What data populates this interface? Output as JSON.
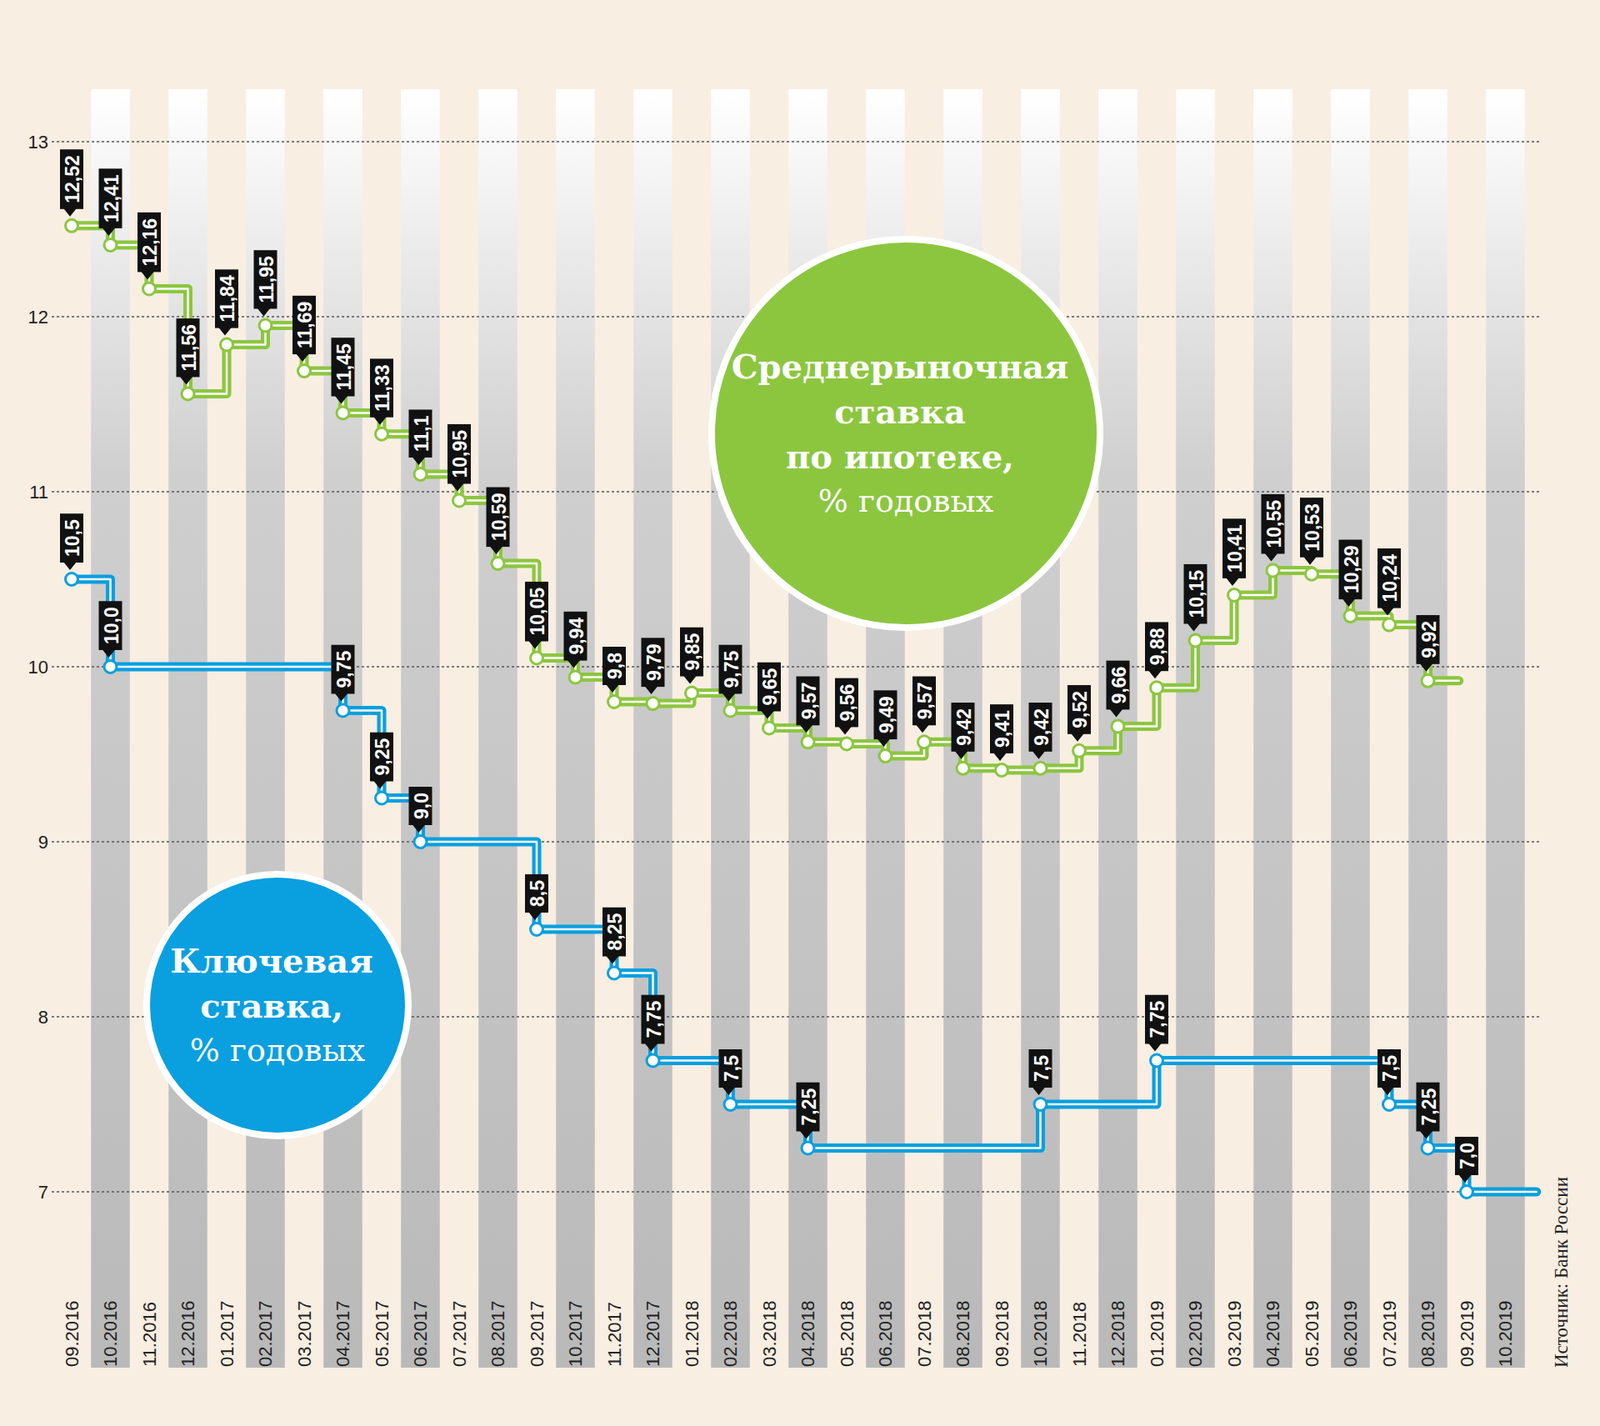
{
  "chart_data": {
    "type": "line",
    "source": "Источник: Банк России",
    "categories": [
      "09.2016",
      "10.2016",
      "11.2016",
      "12.2016",
      "01.2017",
      "02.2017",
      "03.2017",
      "04.2017",
      "05.2017",
      "06.2017",
      "07.2017",
      "08.2017",
      "09.2017",
      "10.2017",
      "11.2017",
      "12.2017",
      "01.2018",
      "02.2018",
      "03.2018",
      "04.2018",
      "05.2018",
      "06.2018",
      "07.2018",
      "08.2018",
      "09.2018",
      "10.2018",
      "11.2018",
      "12.2018",
      "01.2019",
      "02.2019",
      "03.2019",
      "04.2019",
      "05.2019",
      "06.2019",
      "07.2019",
      "08.2019",
      "09.2019",
      "10.2019"
    ],
    "ylim": [
      7,
      13
    ],
    "yticks": [
      7,
      8,
      9,
      10,
      11,
      12,
      13
    ],
    "grid": true,
    "data_labels": true,
    "line_style": "step",
    "marker": "circle",
    "series": [
      {
        "name": "Среднерыночная ставка по ипотеке, % годовых",
        "color": "#8cc63f",
        "values": [
          12.52,
          12.41,
          12.16,
          11.56,
          11.84,
          11.95,
          11.69,
          11.45,
          11.33,
          11.1,
          10.95,
          10.59,
          10.05,
          9.94,
          9.8,
          9.79,
          9.85,
          9.75,
          9.65,
          9.57,
          9.56,
          9.49,
          9.57,
          9.42,
          9.41,
          9.42,
          9.52,
          9.66,
          9.88,
          10.15,
          10.41,
          10.55,
          10.53,
          10.29,
          10.24,
          9.92,
          null,
          null
        ],
        "value_labels": [
          "12,52",
          "12,41",
          "12,16",
          "11,56",
          "11,84",
          "11,95",
          "11,69",
          "11,45",
          "11,33",
          "11,1",
          "10,95",
          "10,59",
          "10,05",
          "9,94",
          "9,8",
          "9,79",
          "9,85",
          "9,75",
          "9,65",
          "9,57",
          "9,56",
          "9,49",
          "9,57",
          "9,42",
          "9,41",
          "9,42",
          "9,52",
          "9,66",
          "9,88",
          "10,15",
          "10,41",
          "10,55",
          "10,53",
          "10,29",
          "10,24",
          "9,92",
          null,
          null
        ]
      },
      {
        "name": "Ключевая ставка, % годовых",
        "color": "#0a9fdf",
        "values": [
          10.5,
          10.0,
          10.0,
          10.0,
          10.0,
          10.0,
          10.0,
          9.75,
          9.25,
          9.0,
          9.0,
          9.0,
          8.5,
          8.5,
          8.25,
          7.75,
          7.75,
          7.5,
          7.5,
          7.25,
          7.25,
          7.25,
          7.25,
          7.25,
          7.25,
          7.5,
          7.5,
          7.5,
          7.75,
          7.75,
          7.75,
          7.75,
          7.75,
          7.75,
          7.5,
          7.25,
          7.0,
          7.0
        ],
        "value_labels": [
          "10,5",
          "10,0",
          null,
          null,
          null,
          null,
          null,
          "9,75",
          "9,25",
          "9,0",
          null,
          null,
          "8,5",
          null,
          "8,25",
          "7,75",
          null,
          "7,5",
          null,
          "7,25",
          null,
          null,
          null,
          null,
          null,
          "7,5",
          null,
          null,
          "7,75",
          null,
          null,
          null,
          null,
          null,
          "7,5",
          "7,25",
          "7,0",
          null
        ]
      }
    ]
  }
}
